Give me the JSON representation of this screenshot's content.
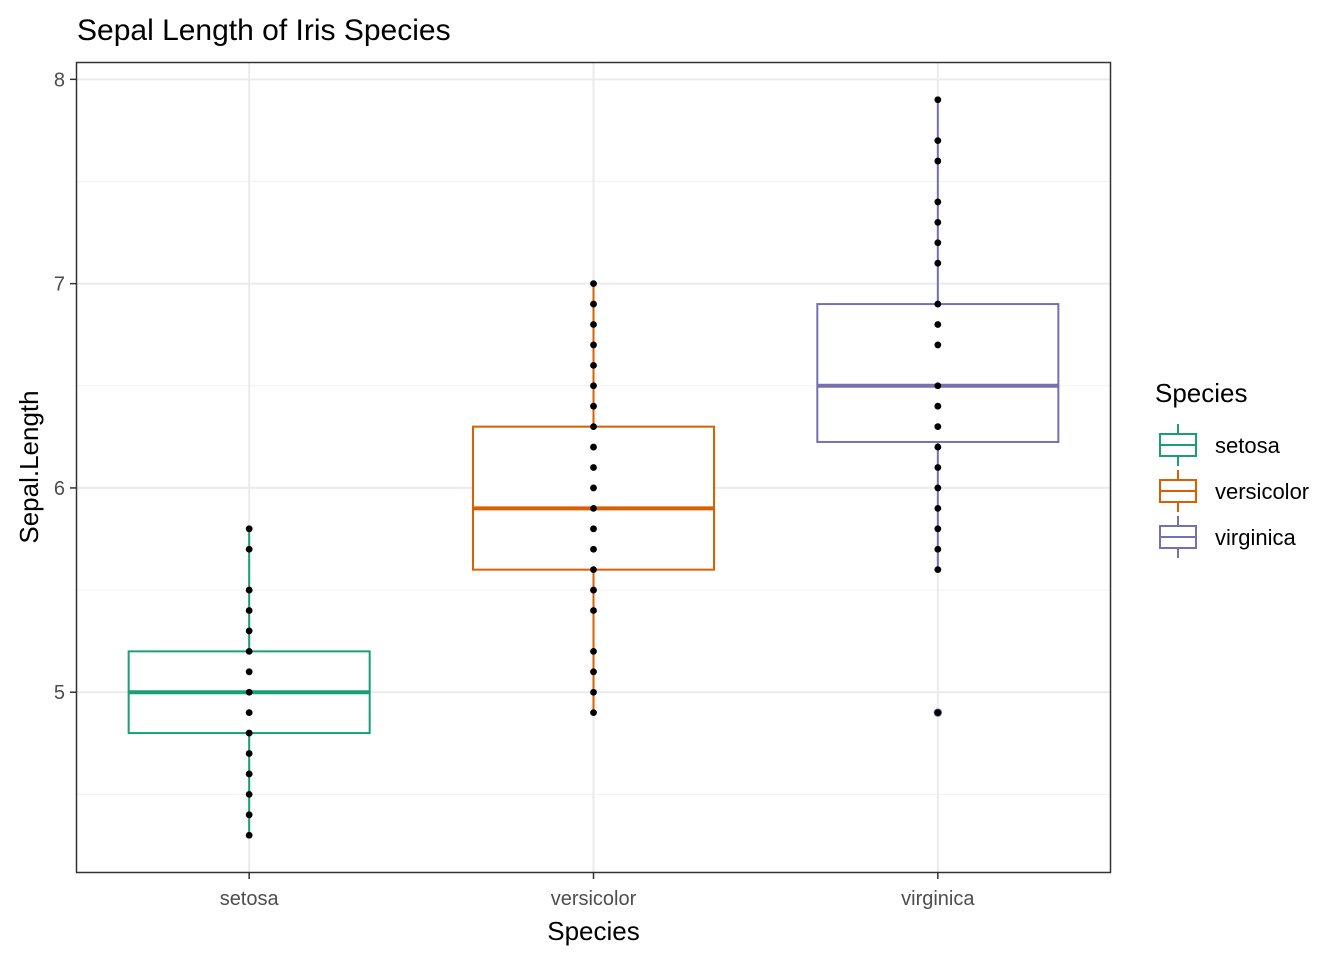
{
  "chart_data": {
    "type": "boxplot",
    "title": "Sepal Length of Iris Species",
    "xlabel": "Species",
    "ylabel": "Sepal.Length",
    "ylim": [
      4.12,
      8.08
    ],
    "yticks": [
      5,
      6,
      7,
      8
    ],
    "grid": true,
    "legend": {
      "title": "Species",
      "position": "right"
    },
    "categories": [
      "setosa",
      "versicolor",
      "virginica"
    ],
    "series": [
      {
        "name": "setosa",
        "color": "#1b9e77",
        "box": {
          "lower_whisker": 4.3,
          "q1": 4.8,
          "median": 5.0,
          "q3": 5.2,
          "upper_whisker": 5.8
        },
        "outliers": [],
        "points": [
          4.3,
          4.4,
          4.5,
          4.6,
          4.7,
          4.8,
          4.9,
          5.0,
          5.1,
          5.2,
          5.3,
          5.4,
          5.5,
          5.7,
          5.8
        ]
      },
      {
        "name": "versicolor",
        "color": "#d95f02",
        "box": {
          "lower_whisker": 4.9,
          "q1": 5.6,
          "median": 5.9,
          "q3": 6.3,
          "upper_whisker": 7.0
        },
        "outliers": [],
        "points": [
          4.9,
          5.0,
          5.1,
          5.2,
          5.4,
          5.5,
          5.6,
          5.7,
          5.8,
          5.9,
          6.0,
          6.1,
          6.2,
          6.3,
          6.4,
          6.5,
          6.6,
          6.7,
          6.8,
          6.9,
          7.0
        ]
      },
      {
        "name": "virginica",
        "color": "#7570b3",
        "box": {
          "lower_whisker": 5.6,
          "q1": 6.225,
          "median": 6.5,
          "q3": 6.9,
          "upper_whisker": 7.9
        },
        "outliers": [
          4.9
        ],
        "points": [
          4.9,
          5.6,
          5.7,
          5.8,
          5.9,
          6.0,
          6.1,
          6.2,
          6.3,
          6.4,
          6.5,
          6.7,
          6.8,
          6.9,
          7.1,
          7.2,
          7.3,
          7.4,
          7.6,
          7.7,
          7.9
        ]
      }
    ]
  }
}
